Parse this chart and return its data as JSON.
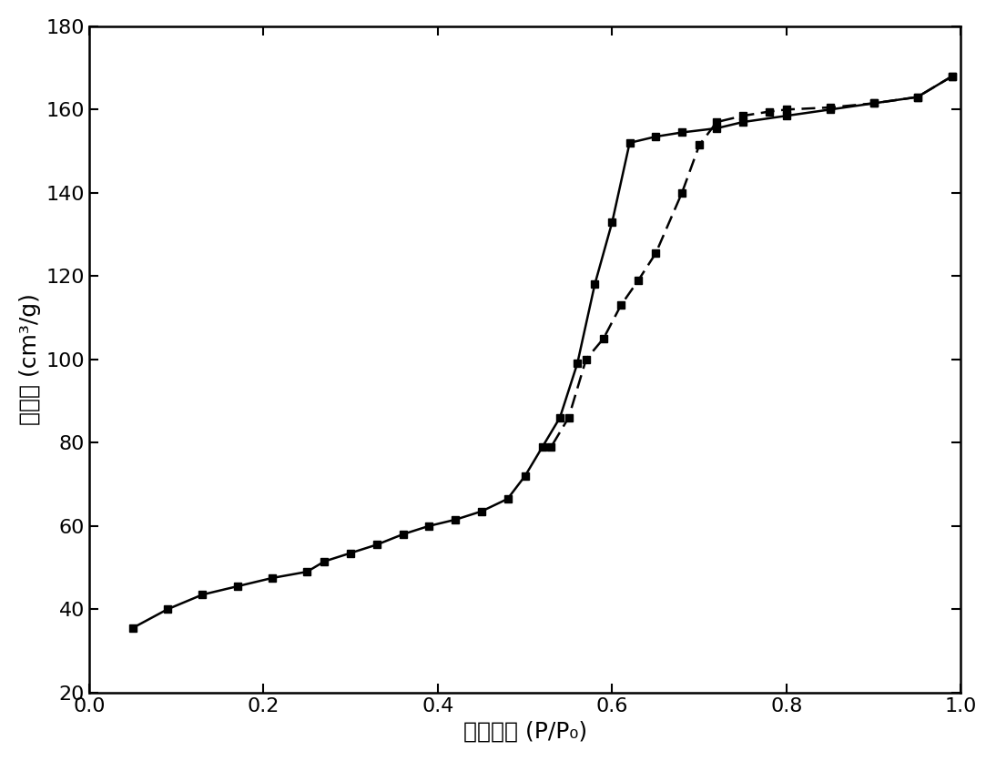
{
  "adsorption_x": [
    0.05,
    0.09,
    0.13,
    0.17,
    0.21,
    0.25,
    0.27,
    0.3,
    0.33,
    0.36,
    0.39,
    0.42,
    0.45,
    0.48,
    0.5,
    0.52,
    0.54,
    0.56,
    0.58,
    0.6,
    0.62,
    0.65,
    0.68,
    0.72,
    0.75,
    0.8,
    0.85,
    0.9,
    0.95,
    0.99
  ],
  "adsorption_y": [
    35.5,
    40.0,
    43.5,
    45.5,
    47.5,
    49.0,
    51.5,
    53.5,
    55.5,
    58.0,
    60.0,
    61.5,
    63.5,
    66.5,
    72.0,
    79.0,
    86.0,
    99.0,
    118.0,
    133.0,
    152.0,
    153.5,
    154.5,
    155.5,
    157.0,
    158.5,
    160.0,
    161.5,
    163.0,
    168.0
  ],
  "desorption_x": [
    0.99,
    0.95,
    0.9,
    0.85,
    0.8,
    0.78,
    0.75,
    0.72,
    0.7,
    0.68,
    0.65,
    0.63,
    0.61,
    0.59,
    0.57,
    0.55,
    0.53
  ],
  "desorption_y": [
    168.0,
    163.0,
    161.5,
    160.5,
    160.0,
    159.5,
    158.5,
    157.0,
    151.5,
    140.0,
    125.5,
    119.0,
    113.0,
    105.0,
    100.0,
    86.0,
    79.0
  ],
  "xlabel_cn": "相对压力",
  "xlabel_sub": " (P/P₀)",
  "ylabel_cn": "吸附量",
  "ylabel_sub": " (cm³/g)",
  "xlim": [
    0.0,
    1.0
  ],
  "ylim": [
    20,
    180
  ],
  "xticks": [
    0.0,
    0.2,
    0.4,
    0.6,
    0.8,
    1.0
  ],
  "yticks": [
    20,
    40,
    60,
    80,
    100,
    120,
    140,
    160,
    180
  ],
  "line_color": "#000000",
  "marker": "s",
  "markersize": 6,
  "linewidth": 1.8,
  "background_color": "#ffffff",
  "tick_fontsize": 16,
  "label_fontsize": 18
}
